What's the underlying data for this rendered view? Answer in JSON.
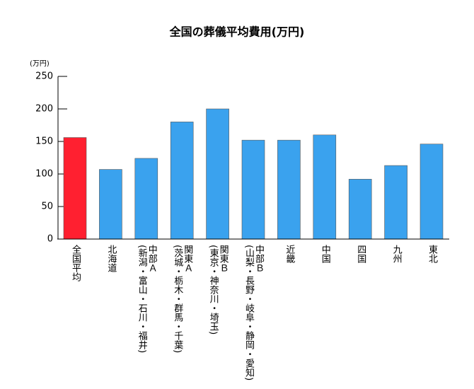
{
  "chart_data": {
    "type": "bar",
    "title": "全国の葬儀平均費用(万円)",
    "y_label": "(万円)",
    "categories": [
      "全国平均",
      "北海道",
      "中部Ａ\n(新潟・富山・石川・福井)",
      "関東Ａ\n(茨城・栃木・群馬・千葉)",
      "関東Ｂ\n(東京・神奈川・埼玉)",
      "中部Ｂ\n(山梨・長野・岐阜・静岡・愛知)",
      "近畿",
      "中国",
      "四国",
      "九州",
      "東北"
    ],
    "values": [
      156,
      107,
      124,
      180,
      200,
      152,
      152,
      160,
      92,
      113,
      146
    ],
    "colors": [
      "#ff2030",
      "#3aa2ee",
      "#3aa2ee",
      "#3aa2ee",
      "#3aa2ee",
      "#3aa2ee",
      "#3aa2ee",
      "#3aa2ee",
      "#3aa2ee",
      "#3aa2ee",
      "#3aa2ee"
    ],
    "ylim": [
      0,
      250
    ],
    "yticks": [
      0,
      50,
      100,
      150,
      200,
      250
    ],
    "grid": false
  }
}
